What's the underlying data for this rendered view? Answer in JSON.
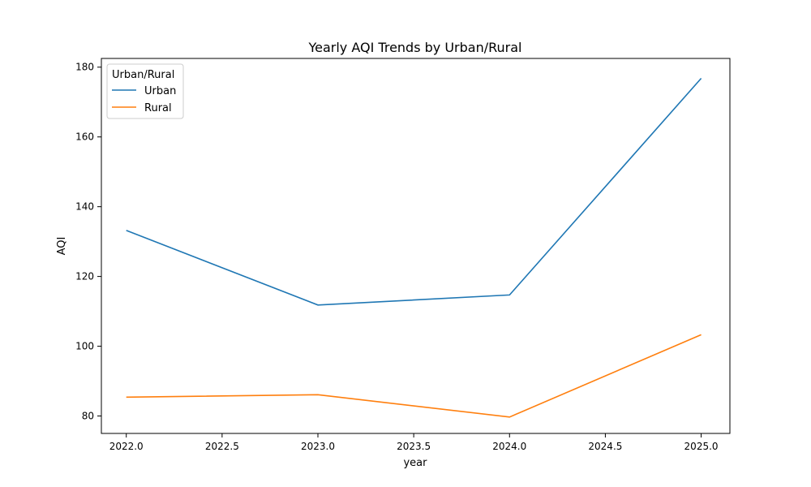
{
  "chart_data": {
    "type": "line",
    "title": "Yearly AQI Trends by Urban/Rural",
    "xlabel": "year",
    "ylabel": "AQI",
    "xlim": [
      2021.87,
      2025.15
    ],
    "ylim": [
      75,
      182.5
    ],
    "x_ticks": [
      2022.0,
      2022.5,
      2023.0,
      2023.5,
      2024.0,
      2024.5,
      2025.0
    ],
    "x_tick_labels": [
      "2022.0",
      "2022.5",
      "2023.0",
      "2023.5",
      "2024.0",
      "2024.5",
      "2025.0"
    ],
    "y_ticks": [
      80,
      100,
      120,
      140,
      160,
      180
    ],
    "y_tick_labels": [
      "80",
      "100",
      "120",
      "140",
      "160",
      "180"
    ],
    "grid": false,
    "legend": {
      "title": "Urban/Rural",
      "position": "top-left"
    },
    "x": [
      2022,
      2023,
      2024,
      2025
    ],
    "series": [
      {
        "name": "Urban",
        "color": "#1f77b4",
        "values": [
          133.2,
          111.8,
          114.7,
          176.8
        ]
      },
      {
        "name": "Rural",
        "color": "#ff7f0e",
        "values": [
          85.4,
          86.1,
          79.7,
          103.3
        ]
      }
    ]
  }
}
